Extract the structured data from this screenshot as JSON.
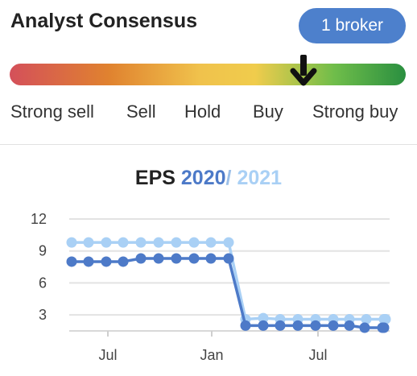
{
  "header": {
    "title": "Analyst Consensus",
    "broker_button": "1 broker"
  },
  "consensus": {
    "scale_labels": [
      "Strong sell",
      "Sell",
      "Hold",
      "Buy",
      "Strong buy"
    ],
    "rating_level": 0.74,
    "colors": {
      "strong_sell": "#d4505a",
      "hold": "#f0c24c",
      "strong_buy": "#2a8f40",
      "pill": "#4d80cc"
    }
  },
  "eps": {
    "title_prefix": "EPS",
    "year1": "2020",
    "separator": "/",
    "year2": "2021"
  },
  "chart_data": {
    "type": "line",
    "y_ticks": [
      "12",
      "9",
      "6",
      "3"
    ],
    "x_ticks": [
      "Jul",
      "Jan",
      "Jul"
    ],
    "ylim": [
      1.5,
      12
    ],
    "grid": true,
    "series": [
      {
        "name": "2020",
        "color": "#4d7ac8",
        "points": [
          {
            "x": "2019-06",
            "y": 8.0
          },
          {
            "x": "2019-07",
            "y": 8.0
          },
          {
            "x": "2019-07",
            "y": 8.0
          },
          {
            "x": "2019-08",
            "y": 8.0
          },
          {
            "x": "2019-09",
            "y": 8.3
          },
          {
            "x": "2019-10",
            "y": 8.3
          },
          {
            "x": "2019-11",
            "y": 8.3
          },
          {
            "x": "2019-12",
            "y": 8.3
          },
          {
            "x": "2019-12",
            "y": 8.3
          },
          {
            "x": "2020-01",
            "y": 8.3
          },
          {
            "x": "2020-02",
            "y": 2.0
          },
          {
            "x": "2020-03",
            "y": 2.0
          },
          {
            "x": "2020-04",
            "y": 2.0
          },
          {
            "x": "2020-05",
            "y": 2.0
          },
          {
            "x": "2020-06",
            "y": 2.0
          },
          {
            "x": "2020-07",
            "y": 2.0
          },
          {
            "x": "2020-07",
            "y": 2.0
          },
          {
            "x": "2020-08",
            "y": 1.8
          },
          {
            "x": "2020-09",
            "y": 1.8
          },
          {
            "x": "2020-10",
            "y": 1.8
          }
        ]
      },
      {
        "name": "2021",
        "color": "#a9d0f5",
        "points": [
          {
            "x": "2019-06",
            "y": 9.8
          },
          {
            "x": "2019-07",
            "y": 9.8
          },
          {
            "x": "2019-07",
            "y": 9.8
          },
          {
            "x": "2019-08",
            "y": 9.8
          },
          {
            "x": "2019-09",
            "y": 9.8
          },
          {
            "x": "2019-10",
            "y": 9.8
          },
          {
            "x": "2019-11",
            "y": 9.8
          },
          {
            "x": "2019-12",
            "y": 9.8
          },
          {
            "x": "2019-12",
            "y": 9.8
          },
          {
            "x": "2020-01",
            "y": 9.8
          },
          {
            "x": "2020-02",
            "y": 2.6
          },
          {
            "x": "2020-03",
            "y": 2.7
          },
          {
            "x": "2020-04",
            "y": 2.6
          },
          {
            "x": "2020-05",
            "y": 2.6
          },
          {
            "x": "2020-06",
            "y": 2.6
          },
          {
            "x": "2020-07",
            "y": 2.6
          },
          {
            "x": "2020-07",
            "y": 2.6
          },
          {
            "x": "2020-08",
            "y": 2.6
          },
          {
            "x": "2020-09",
            "y": 2.6
          },
          {
            "x": "2020-10",
            "y": 2.6
          }
        ]
      }
    ]
  }
}
